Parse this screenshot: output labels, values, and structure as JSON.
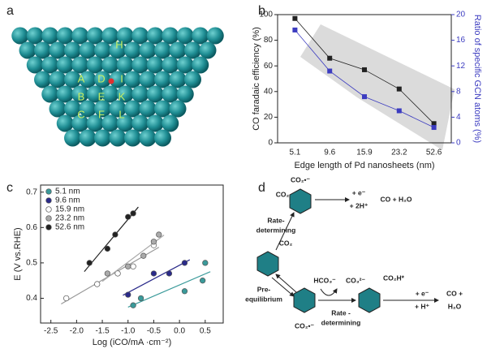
{
  "panel_labels": [
    "a",
    "b",
    "c",
    "d"
  ],
  "panel_a": {
    "site_labels": [
      "H",
      "A",
      "D",
      "I",
      "B",
      "E",
      "K",
      "C",
      "F",
      "L"
    ]
  },
  "chart_data": [
    {
      "type": "dual_line",
      "categories": [
        "5.1",
        "9.6",
        "15.9",
        "23.2",
        "52.6"
      ],
      "xlabel": "Edge length of Pd nanosheets (nm)",
      "ylabel": "CO faradaic efficiency (%)",
      "y2label": "Ratio of specific GCN atoms (%)",
      "ylim": [
        0,
        100
      ],
      "yticks": [
        0,
        20,
        40,
        60,
        80,
        100
      ],
      "y2lim": [
        0,
        20
      ],
      "y2ticks": [
        0,
        4,
        8,
        12,
        16,
        20
      ],
      "series": [
        {
          "color": "#222222",
          "values": [
            97,
            66,
            57,
            42,
            15
          ]
        },
        {
          "color": "#3c3cc0",
          "axis": "y2",
          "values": [
            17.6,
            11.2,
            7.2,
            5,
            2.4
          ]
        }
      ]
    },
    {
      "type": "scatter",
      "xlabel": "Log (iCO/mA ·cm⁻²)",
      "ylabel": "E (V vs.RHE)",
      "xlim": [
        -2.7,
        0.85
      ],
      "xticks": [
        -2.5,
        {
          "value": -2,
          "label": "-2.0"
        },
        -1.5,
        {
          "value": -1,
          "label": "-1.0"
        },
        -0.5,
        {
          "value": 0,
          "label": "0.0"
        },
        0.5
      ],
      "ylim": [
        0.33,
        0.72
      ],
      "yticks": [
        0.4,
        0.5,
        0.6,
        0.7
      ],
      "legend": "upper left",
      "series": [
        {
          "name": "5.1 nm",
          "color": "#3a9a9a",
          "x": [
            -0.9,
            -0.75,
            0.1,
            0.45,
            0.5
          ],
          "values": [
            0.38,
            0.4,
            0.42,
            0.45,
            0.5
          ]
        },
        {
          "name": "9.6 nm",
          "color": "#2a2a8a",
          "x": [
            -1.0,
            -0.5,
            -0.2,
            0.1
          ],
          "values": [
            0.41,
            0.47,
            0.47,
            0.5
          ]
        },
        {
          "name": "15.9 nm",
          "color": "#ffffff",
          "x": [
            -2.2,
            -1.6,
            -1.2,
            -0.9,
            -0.5
          ],
          "values": [
            0.4,
            0.44,
            0.47,
            0.49,
            0.55
          ]
        },
        {
          "name": "23.2 nm",
          "color": "#aaaaaa",
          "x": [
            -1.4,
            -1.0,
            -0.7,
            -0.5,
            -0.4
          ],
          "values": [
            0.47,
            0.49,
            0.52,
            0.56,
            0.58
          ]
        },
        {
          "name": "52.6 nm",
          "color": "#222222",
          "x": [
            -1.75,
            -1.4,
            -1.25,
            -1.0,
            -0.9
          ],
          "values": [
            0.5,
            0.54,
            0.58,
            0.63,
            0.64
          ]
        }
      ]
    }
  ],
  "panel_d": {
    "labels": [
      "CO₂•⁻",
      "CO₂",
      "+ e⁻",
      "+ 2H⁺",
      "CO + H₂O",
      "Rate-",
      "determining",
      "CO₂",
      "HCO₃⁻",
      "CO₃²⁻",
      "CO₂H*",
      "+ e⁻",
      "+ H⁺",
      "CO +",
      "H₂O",
      "Pre-",
      "equilibrium",
      "Rate -",
      "determining",
      "CO₂•⁻"
    ]
  }
}
